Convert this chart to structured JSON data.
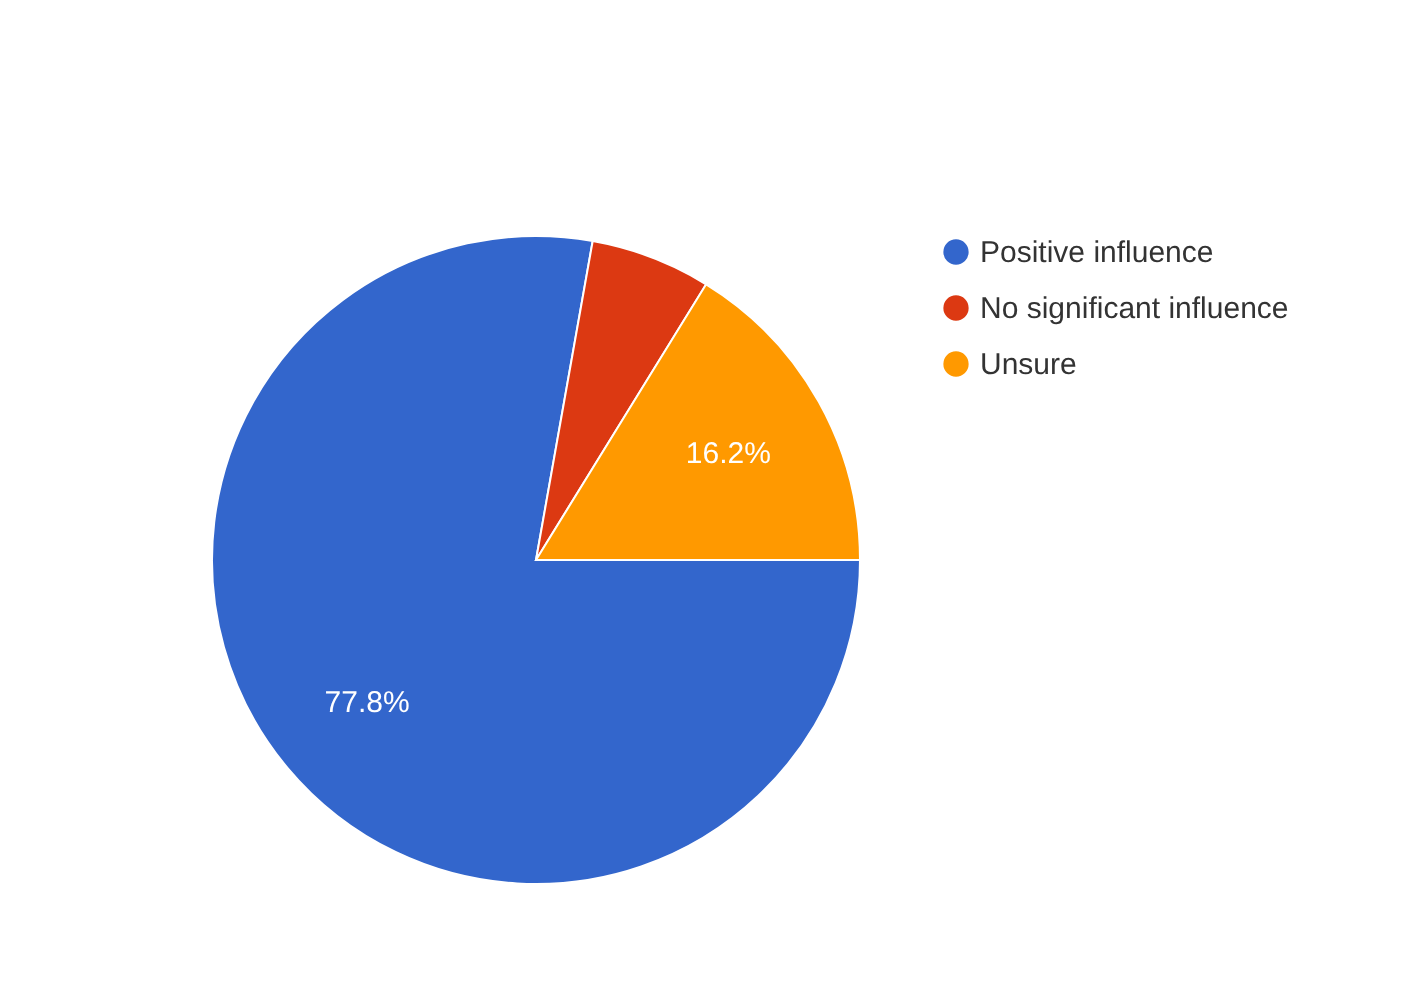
{
  "chart_data": {
    "type": "pie",
    "categories": [
      "Positive influence",
      "No significant influence",
      "Unsure"
    ],
    "values": [
      77.8,
      6.0,
      16.2
    ],
    "colors": [
      "#3366cc",
      "#dc3912",
      "#ff9900"
    ],
    "value_labels": [
      "77.8%",
      null,
      "16.2%"
    ],
    "legend": "top right"
  }
}
